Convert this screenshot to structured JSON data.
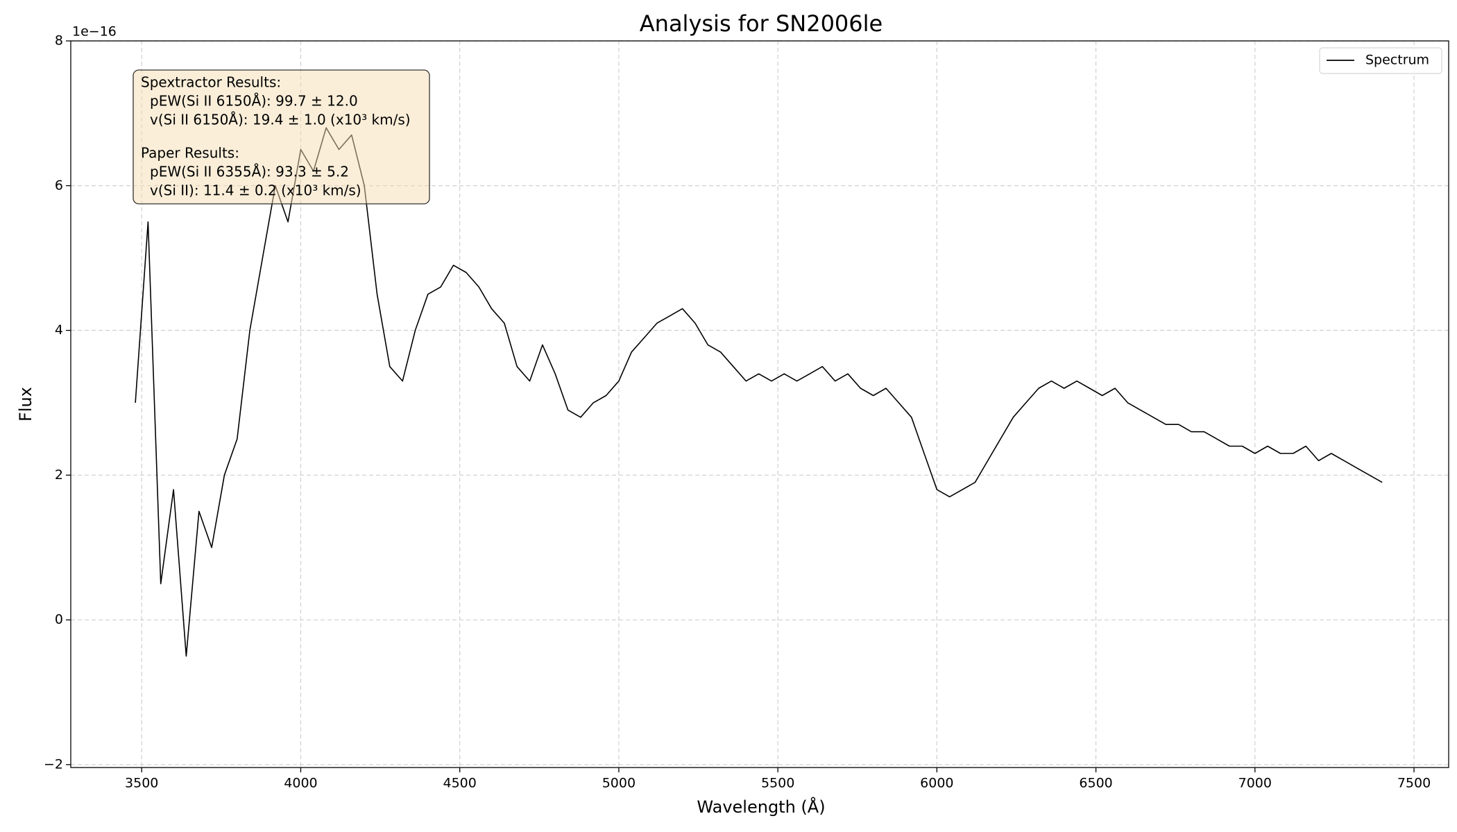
{
  "chart_data": {
    "type": "line",
    "title": "Analysis for SN2006le",
    "xlabel": "Wavelength (Å)",
    "ylabel": "Flux",
    "y_offset_text": "1e−16",
    "x": [
      3480,
      3520,
      3560,
      3600,
      3640,
      3680,
      3720,
      3760,
      3800,
      3840,
      3880,
      3920,
      3960,
      4000,
      4040,
      4080,
      4120,
      4160,
      4200,
      4240,
      4280,
      4320,
      4360,
      4400,
      4440,
      4480,
      4520,
      4560,
      4600,
      4640,
      4680,
      4720,
      4760,
      4800,
      4840,
      4880,
      4920,
      4960,
      5000,
      5040,
      5080,
      5120,
      5160,
      5200,
      5240,
      5280,
      5320,
      5360,
      5400,
      5440,
      5480,
      5520,
      5560,
      5600,
      5640,
      5680,
      5720,
      5760,
      5800,
      5840,
      5880,
      5920,
      5960,
      6000,
      6040,
      6080,
      6120,
      6160,
      6200,
      6240,
      6280,
      6320,
      6360,
      6400,
      6440,
      6480,
      6520,
      6560,
      6600,
      6640,
      6680,
      6720,
      6760,
      6800,
      6840,
      6880,
      6920,
      6960,
      7000,
      7040,
      7080,
      7120,
      7160,
      7200,
      7240,
      7280,
      7320,
      7360,
      7400
    ],
    "series": [
      {
        "name": "Spectrum",
        "color": "#000000",
        "values": [
          3.0,
          5.5,
          0.5,
          1.8,
          -0.5,
          1.5,
          1.0,
          2.0,
          2.5,
          4.0,
          5.0,
          6.0,
          5.5,
          6.5,
          6.2,
          6.8,
          6.5,
          6.7,
          6.0,
          4.5,
          3.5,
          3.3,
          4.0,
          4.5,
          4.6,
          4.9,
          4.8,
          4.6,
          4.3,
          4.1,
          3.5,
          3.3,
          3.8,
          3.4,
          2.9,
          2.8,
          3.0,
          3.1,
          3.3,
          3.7,
          3.9,
          4.1,
          4.2,
          4.3,
          4.1,
          3.8,
          3.7,
          3.5,
          3.3,
          3.4,
          3.3,
          3.4,
          3.3,
          3.4,
          3.5,
          3.3,
          3.4,
          3.2,
          3.1,
          3.2,
          3.0,
          2.8,
          2.3,
          1.8,
          1.7,
          1.8,
          1.9,
          2.2,
          2.5,
          2.8,
          3.0,
          3.2,
          3.3,
          3.2,
          3.3,
          3.2,
          3.1,
          3.2,
          3.0,
          2.9,
          2.8,
          2.7,
          2.7,
          2.6,
          2.6,
          2.5,
          2.4,
          2.4,
          2.3,
          2.4,
          2.3,
          2.3,
          2.4,
          2.2,
          2.3,
          2.2,
          2.1,
          2.0,
          1.9
        ]
      }
    ],
    "xlim": [
      3277,
      7609
    ],
    "ylim": [
      -2.04,
      8
    ],
    "xticks": [
      3500,
      4000,
      4500,
      5000,
      5500,
      6000,
      6500,
      7000,
      7500
    ],
    "yticks": [
      {
        "value": -2,
        "label": "−2"
      },
      0,
      2,
      4,
      6,
      8
    ],
    "grid": true,
    "legend": "upper right",
    "annotation": {
      "groups": [
        {
          "heading": "Spextractor Results:",
          "lines": [
            "pEW(Si II 6150Å): 99.7 ± 12.0",
            "v(Si II 6150Å): 19.4 ± 1.0 (x10³ km/s)"
          ]
        },
        {
          "heading": "Paper Results:",
          "lines": [
            "pEW(Si II 6355Å): 93.3 ± 5.2",
            "v(Si II): 11.4 ± 0.2 (x10³ km/s)"
          ]
        }
      ]
    }
  }
}
